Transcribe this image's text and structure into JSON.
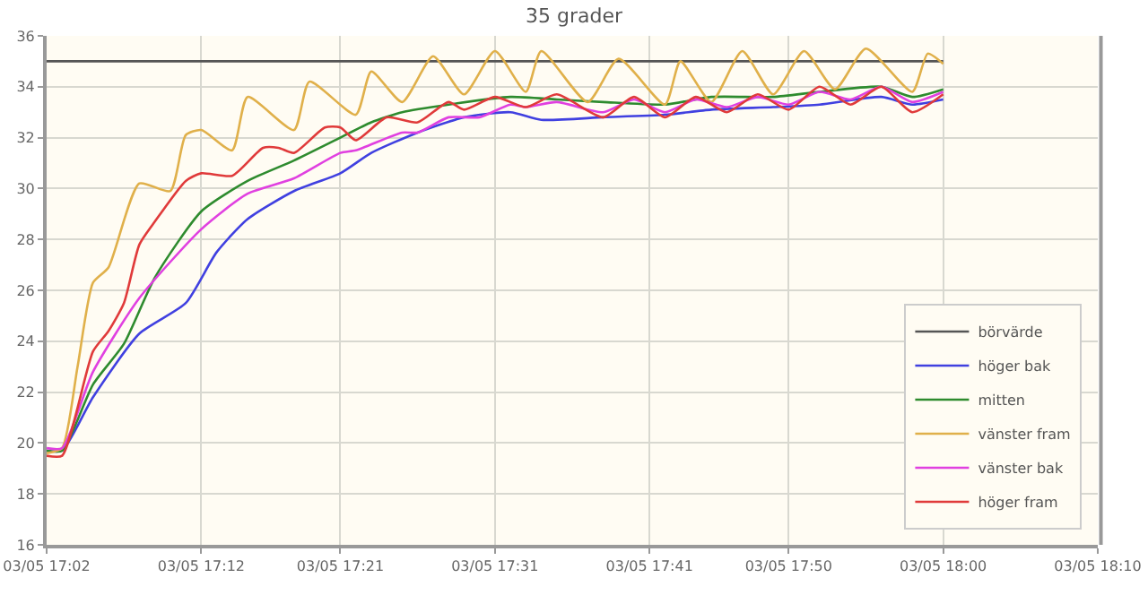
{
  "chart_data": {
    "type": "line",
    "title": "35 grader",
    "xlim": [
      "--05-03T17:02",
      "--05-03T18:10"
    ],
    "xticks": [
      {
        "value": "--05-03T17:02",
        "label": "03/05 17:02"
      },
      {
        "value": "--05-03T17:12",
        "label": "03/05 17:12"
      },
      {
        "value": "--05-03T17:21",
        "label": "03/05 17:21"
      },
      {
        "value": "--05-03T17:31",
        "label": "03/05 17:31"
      },
      {
        "value": "--05-03T17:41",
        "label": "03/05 17:41"
      },
      {
        "value": "--05-03T17:50",
        "label": "03/05 17:50"
      },
      {
        "value": "--05-03T18:00",
        "label": "03/05 18:00"
      },
      {
        "value": "--05-03T18:10",
        "label": "03/05 18:10"
      }
    ],
    "ylim": [
      16,
      36
    ],
    "yticks": [
      16,
      18,
      20,
      22,
      24,
      26,
      28,
      30,
      32,
      34,
      36
    ],
    "grid": true,
    "legend": "bottom right",
    "marker": "none",
    "line_style": "solid",
    "series": [
      {
        "name": "börvärde",
        "color": "#555555",
        "x": [
          "--05-03T17:02",
          "--05-03T18:00"
        ],
        "values": [
          35,
          35
        ]
      },
      {
        "name": "höger bak",
        "color": "#4040e0",
        "x": [
          "--05-03T17:02",
          "--05-03T17:03",
          "--05-03T17:05",
          "--05-03T17:08",
          "--05-03T17:11",
          "--05-03T17:13",
          "--05-03T17:15",
          "--05-03T17:18",
          "--05-03T17:21",
          "--05-03T17:23",
          "--05-03T17:26",
          "--05-03T17:29",
          "--05-03T17:32",
          "--05-03T17:34",
          "--05-03T17:38",
          "--05-03T17:42",
          "--05-03T17:45",
          "--05-03T17:49",
          "--05-03T17:52",
          "--05-03T17:56",
          "--05-03T17:58",
          "--05-03T18:00"
        ],
        "values": [
          19.7,
          19.7,
          21.8,
          24.3,
          25.5,
          27.5,
          28.8,
          29.9,
          30.6,
          31.4,
          32.2,
          32.8,
          33.0,
          32.7,
          32.8,
          32.9,
          33.1,
          33.2,
          33.3,
          33.6,
          33.3,
          33.5
        ]
      },
      {
        "name": "mitten",
        "color": "#2e8b2e",
        "x": [
          "--05-03T17:02",
          "--05-03T17:03",
          "--05-03T17:05",
          "--05-03T17:07",
          "--05-03T17:09",
          "--05-03T17:12",
          "--05-03T17:15",
          "--05-03T17:18",
          "--05-03T17:21",
          "--05-03T17:23",
          "--05-03T17:25",
          "--05-03T17:28",
          "--05-03T17:32",
          "--05-03T17:35",
          "--05-03T17:38",
          "--05-03T17:42",
          "--05-03T17:45",
          "--05-03T17:49",
          "--05-03T17:52",
          "--05-03T17:56",
          "--05-03T17:58",
          "--05-03T18:00"
        ],
        "values": [
          19.7,
          19.7,
          22.3,
          23.9,
          26.5,
          29.1,
          30.3,
          31.1,
          32.0,
          32.6,
          33.0,
          33.3,
          33.6,
          33.5,
          33.4,
          33.3,
          33.6,
          33.6,
          33.8,
          34.0,
          33.6,
          33.9
        ]
      },
      {
        "name": "vänster fram",
        "color": "#e0b04a",
        "x": [
          "--05-03T17:02",
          "--05-03T17:03",
          "--05-03T17:04",
          "--05-03T17:05",
          "--05-03T17:06",
          "--05-03T17:08",
          "--05-03T17:10",
          "--05-03T17:11",
          "--05-03T17:12",
          "--05-03T17:14",
          "--05-03T17:15",
          "--05-03T17:18",
          "--05-03T17:19",
          "--05-03T17:22",
          "--05-03T17:23",
          "--05-03T17:25",
          "--05-03T17:27",
          "--05-03T17:29",
          "--05-03T17:31",
          "--05-03T17:33",
          "--05-03T17:34",
          "--05-03T17:37",
          "--05-03T17:39",
          "--05-03T17:42",
          "--05-03T17:43",
          "--05-03T17:45",
          "--05-03T17:47",
          "--05-03T17:49",
          "--05-03T17:51",
          "--05-03T17:53",
          "--05-03T17:55",
          "--05-03T17:58",
          "--05-03T17:59",
          "--05-03T18:00"
        ],
        "values": [
          19.6,
          19.8,
          23.0,
          26.3,
          26.9,
          30.2,
          29.9,
          32.1,
          32.3,
          31.5,
          33.6,
          32.3,
          34.2,
          32.9,
          34.6,
          33.4,
          35.2,
          33.7,
          35.4,
          33.8,
          35.4,
          33.4,
          35.1,
          33.3,
          35.0,
          33.4,
          35.4,
          33.7,
          35.4,
          33.9,
          35.5,
          33.8,
          35.3,
          34.9
        ]
      },
      {
        "name": "vänster bak",
        "color": "#e040e0",
        "x": [
          "--05-03T17:02",
          "--05-03T17:03",
          "--05-03T17:05",
          "--05-03T17:08",
          "--05-03T17:12",
          "--05-03T17:15",
          "--05-03T17:18",
          "--05-03T17:21",
          "--05-03T17:22",
          "--05-03T17:25",
          "--05-03T17:26",
          "--05-03T17:28",
          "--05-03T17:30",
          "--05-03T17:32",
          "--05-03T17:33",
          "--05-03T17:35",
          "--05-03T17:38",
          "--05-03T17:40",
          "--05-03T17:42",
          "--05-03T17:44",
          "--05-03T17:46",
          "--05-03T17:48",
          "--05-03T17:50",
          "--05-03T17:52",
          "--05-03T17:54",
          "--05-03T17:56",
          "--05-03T17:58",
          "--05-03T18:00"
        ],
        "values": [
          19.8,
          19.8,
          22.8,
          25.7,
          28.4,
          29.8,
          30.4,
          31.4,
          31.5,
          32.2,
          32.2,
          32.8,
          32.8,
          33.3,
          33.2,
          33.4,
          33.0,
          33.5,
          33.0,
          33.5,
          33.2,
          33.6,
          33.3,
          33.8,
          33.5,
          34.0,
          33.4,
          33.8
        ]
      },
      {
        "name": "höger fram",
        "color": "#e03a3a",
        "x": [
          "--05-03T17:02",
          "--05-03T17:03",
          "--05-03T17:05",
          "--05-03T17:06",
          "--05-03T17:07",
          "--05-03T17:08",
          "--05-03T17:09",
          "--05-03T17:11",
          "--05-03T17:12",
          "--05-03T17:14",
          "--05-03T17:16",
          "--05-03T17:17",
          "--05-03T17:18",
          "--05-03T17:20",
          "--05-03T17:21",
          "--05-03T17:22",
          "--05-03T17:24",
          "--05-03T17:26",
          "--05-03T17:28",
          "--05-03T17:29",
          "--05-03T17:31",
          "--05-03T17:33",
          "--05-03T17:35",
          "--05-03T17:38",
          "--05-03T17:40",
          "--05-03T17:42",
          "--05-03T17:44",
          "--05-03T17:46",
          "--05-03T17:48",
          "--05-03T17:50",
          "--05-03T17:52",
          "--05-03T17:54",
          "--05-03T17:56",
          "--05-03T17:58",
          "--05-03T18:00"
        ],
        "values": [
          19.5,
          19.5,
          23.6,
          24.4,
          25.5,
          27.8,
          28.7,
          30.3,
          30.6,
          30.5,
          31.6,
          31.6,
          31.4,
          32.4,
          32.4,
          31.9,
          32.8,
          32.6,
          33.4,
          33.1,
          33.6,
          33.2,
          33.7,
          32.8,
          33.6,
          32.8,
          33.6,
          33.0,
          33.7,
          33.1,
          34.0,
          33.3,
          34.0,
          33.0,
          33.7
        ]
      }
    ]
  }
}
